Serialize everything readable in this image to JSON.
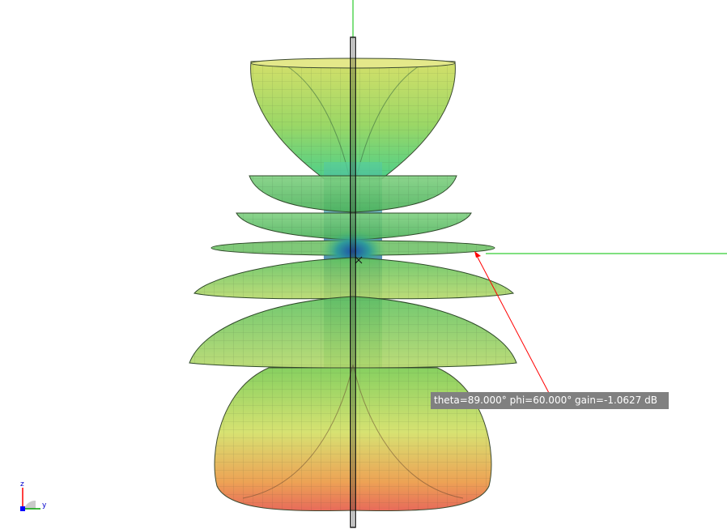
{
  "readout": {
    "text": "theta=89.000° phi=60.000° gain=-1.0627 dB",
    "theta_deg": 89.0,
    "phi_deg": 60.0,
    "gain_db": -1.0627
  },
  "axes": {
    "z_label": "z",
    "y_label": "y"
  },
  "colors": {
    "x_axis": "#ff0000",
    "y_axis": "#00c000",
    "z_axis": "#0000ff",
    "gain_low": "#1f5fbf",
    "gain_mid": "#3fbf5f",
    "gain_high": "#e04030",
    "tooltip_bg": "#808080"
  }
}
